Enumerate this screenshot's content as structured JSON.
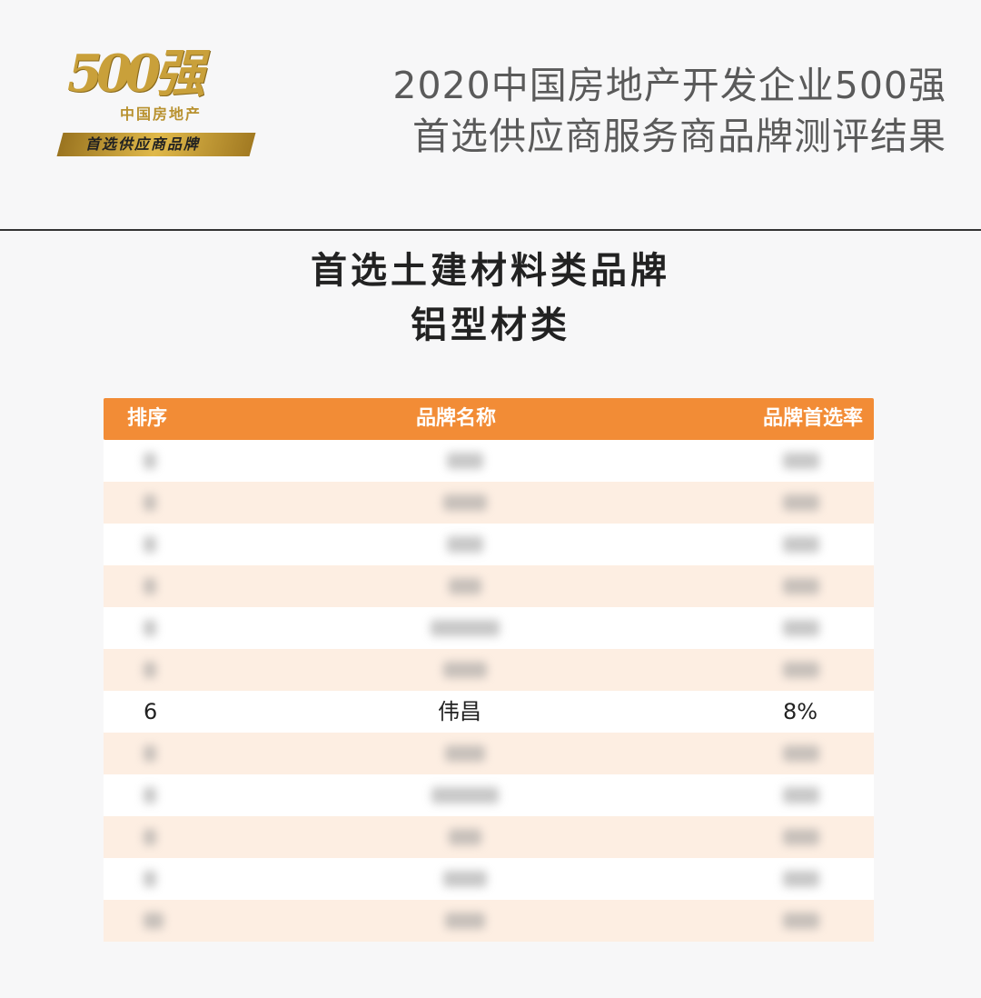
{
  "logo": {
    "number": "500强",
    "sub": "中国房地产",
    "banner": "首选供应商品牌"
  },
  "header": {
    "title_line1": "2020中国房地产开发企业500强",
    "title_line2": "首选供应商服务商品牌测评结果"
  },
  "section": {
    "title": "首选土建材料类品牌",
    "subtitle": "铝型材类"
  },
  "table": {
    "columns": [
      "排序",
      "品牌名称",
      "品牌首选率"
    ],
    "highlight_row": {
      "rank": "6",
      "brand": "伟昌",
      "rate": "8%"
    },
    "colors": {
      "header": "#f28c36",
      "stripe": "#fdeee2"
    }
  }
}
